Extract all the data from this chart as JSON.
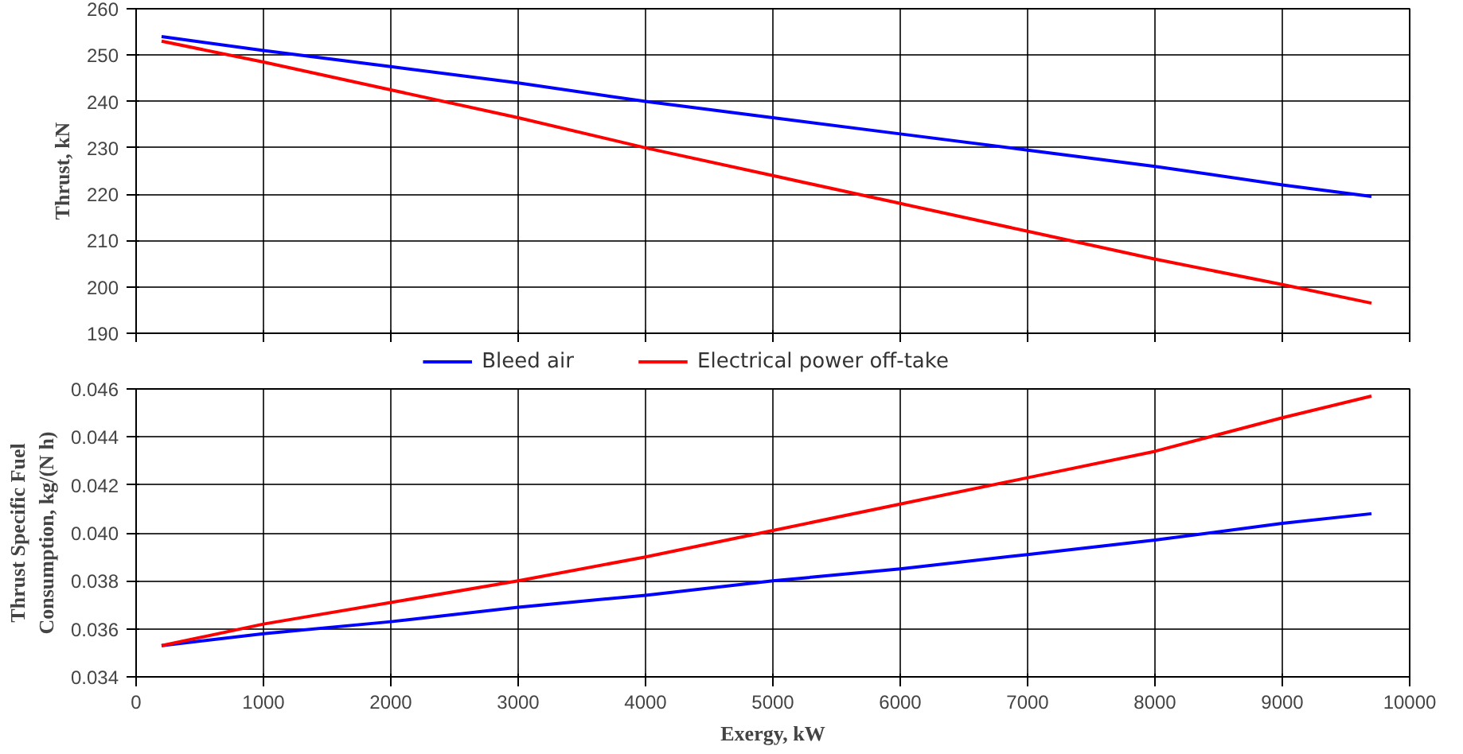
{
  "chart_data": [
    {
      "type": "line",
      "ylabel": "Thrust, kN",
      "x": [
        200,
        1000,
        2000,
        3000,
        4000,
        5000,
        6000,
        7000,
        8000,
        9000,
        9700
      ],
      "series": [
        {
          "name": "Bleed air",
          "color": "#0000ff",
          "values": [
            254,
            251,
            247.5,
            244,
            240,
            236.5,
            233,
            229.5,
            226,
            222,
            219.5
          ]
        },
        {
          "name": "Electrical power off-take",
          "color": "#ff0000",
          "values": [
            253,
            248.5,
            242.5,
            236.5,
            230,
            224,
            218,
            212,
            206,
            200.5,
            196.5
          ]
        }
      ],
      "legend": "bottom",
      "xlim": [
        0,
        10000
      ],
      "xticks": [
        0,
        1000,
        2000,
        3000,
        4000,
        5000,
        6000,
        7000,
        8000,
        9000,
        10000
      ],
      "ylim": [
        190,
        260
      ],
      "yticks": [
        190,
        200,
        210,
        220,
        230,
        240,
        250,
        260
      ],
      "grid": true,
      "tick_labels": "y"
    },
    {
      "type": "line",
      "xlabel": "Exergy, kW",
      "ylabel": "Thrust Specific Fuel Consumption, kg/(N h)",
      "x": [
        200,
        1000,
        2000,
        3000,
        4000,
        5000,
        6000,
        7000,
        8000,
        9000,
        9700
      ],
      "series": [
        {
          "color": "#0000ff",
          "values": [
            0.0353,
            0.0358,
            0.0363,
            0.0369,
            0.0374,
            0.038,
            0.0385,
            0.0391,
            0.0397,
            0.0404,
            0.0408
          ]
        },
        {
          "color": "#ff0000",
          "values": [
            0.0353,
            0.0362,
            0.0371,
            0.038,
            0.039,
            0.0401,
            0.0412,
            0.0423,
            0.0434,
            0.0448,
            0.0457
          ]
        }
      ],
      "xlim": [
        0,
        10000
      ],
      "xticks": [
        0,
        1000,
        2000,
        3000,
        4000,
        5000,
        6000,
        7000,
        8000,
        9000,
        10000
      ],
      "ylim": [
        0.034,
        0.046
      ],
      "yticks": [
        {
          "value": 0.034,
          "label": "0.034"
        },
        {
          "value": 0.036,
          "label": "0.036"
        },
        {
          "value": 0.038,
          "label": "0.038"
        },
        {
          "value": 0.04,
          "label": "0.040"
        },
        {
          "value": 0.042,
          "label": "0.042"
        },
        {
          "value": 0.044,
          "label": "0.044"
        },
        {
          "value": 0.046,
          "label": "0.046"
        }
      ],
      "grid": true
    }
  ]
}
